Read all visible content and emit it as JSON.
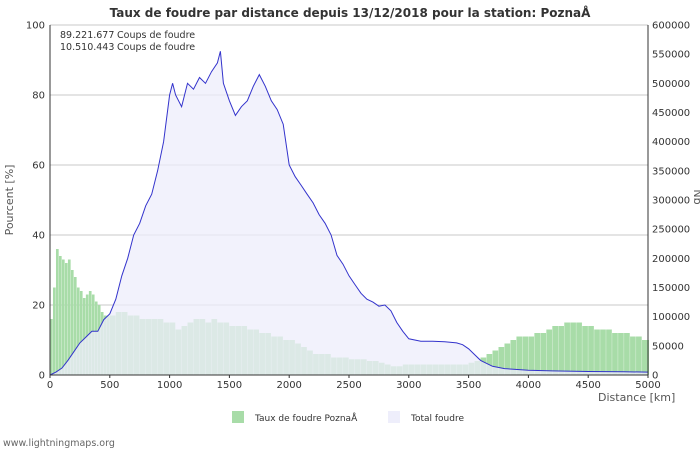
{
  "chart_data": {
    "type": "area",
    "title": "Taux de foudre par distance depuis 13/12/2018 pour la station: PoznaÅ",
    "xlabel": "Distance   [km]",
    "ylabel_left": "Pourcent   [%]",
    "ylabel_right": "Nb",
    "xlim": [
      0,
      5000
    ],
    "ylim_left": [
      0,
      100
    ],
    "ylim_right": [
      0,
      600000
    ],
    "x_ticks": [
      0,
      500,
      1000,
      1500,
      2000,
      2500,
      3000,
      3500,
      4000,
      4500,
      5000
    ],
    "y_left_ticks": [
      0,
      20,
      40,
      60,
      80,
      100
    ],
    "y_right_ticks": [
      0,
      50000,
      100000,
      150000,
      200000,
      250000,
      300000,
      350000,
      400000,
      450000,
      500000,
      550000,
      600000
    ],
    "stats": [
      {
        "value": "89.221.677",
        "label": "Coups de foudre"
      },
      {
        "value": "10.510.443",
        "label": "Coups de foudre"
      }
    ],
    "series": [
      {
        "name": "Taux de foudre PoznaÅ",
        "axis": "left",
        "color": "#a8dca8",
        "x": [
          0,
          25,
          50,
          75,
          100,
          125,
          150,
          175,
          200,
          225,
          250,
          275,
          300,
          325,
          350,
          375,
          400,
          425,
          450,
          475,
          500,
          550,
          600,
          650,
          700,
          750,
          800,
          850,
          900,
          950,
          1000,
          1050,
          1100,
          1150,
          1200,
          1250,
          1300,
          1350,
          1400,
          1450,
          1500,
          1550,
          1600,
          1650,
          1700,
          1750,
          1800,
          1850,
          1900,
          1950,
          2000,
          2050,
          2100,
          2150,
          2200,
          2250,
          2300,
          2350,
          2400,
          2450,
          2500,
          2550,
          2600,
          2650,
          2700,
          2750,
          2800,
          2850,
          2900,
          2950,
          3000,
          3050,
          3100,
          3150,
          3200,
          3250,
          3300,
          3350,
          3400,
          3450,
          3500,
          3550,
          3600,
          3650,
          3700,
          3750,
          3800,
          3850,
          3900,
          3950,
          4000,
          4050,
          4100,
          4150,
          4200,
          4250,
          4300,
          4350,
          4400,
          4450,
          4500,
          4550,
          4600,
          4650,
          4700,
          4750,
          4800,
          4850,
          4900,
          4950,
          5000
        ],
        "values": [
          16,
          25,
          36,
          34,
          33,
          32,
          33,
          30,
          28,
          25,
          24,
          22,
          23,
          24,
          23,
          21,
          20,
          18,
          17,
          17,
          17,
          18,
          18,
          17,
          17,
          16,
          16,
          16,
          16,
          15,
          15,
          13,
          14,
          15,
          16,
          16,
          15,
          16,
          15,
          15,
          14,
          14,
          14,
          13,
          13,
          12,
          12,
          11,
          11,
          10,
          10,
          9,
          8,
          7,
          6,
          6,
          6,
          5,
          5,
          5,
          4.5,
          4.5,
          4.5,
          4,
          4,
          3.5,
          3,
          2.5,
          2.5,
          3,
          3,
          3,
          3,
          3,
          3,
          3,
          3,
          3,
          3,
          3,
          3.5,
          4,
          5,
          6,
          7,
          8,
          9,
          10,
          11,
          11,
          11,
          12,
          12,
          13,
          14,
          14,
          15,
          15,
          15,
          14,
          14,
          13,
          13,
          13,
          12,
          12,
          12,
          11,
          11,
          10,
          10
        ]
      },
      {
        "name": "Total foudre",
        "axis": "right",
        "color": "#eeeefb",
        "line_color": "#3333cc",
        "x": [
          0,
          50,
          100,
          150,
          200,
          250,
          300,
          350,
          400,
          450,
          500,
          550,
          600,
          650,
          700,
          750,
          800,
          850,
          900,
          950,
          1000,
          1025,
          1050,
          1100,
          1150,
          1200,
          1250,
          1300,
          1350,
          1400,
          1425,
          1450,
          1500,
          1550,
          1600,
          1650,
          1700,
          1750,
          1800,
          1850,
          1900,
          1950,
          2000,
          2050,
          2100,
          2150,
          2200,
          2250,
          2300,
          2350,
          2400,
          2450,
          2500,
          2550,
          2600,
          2650,
          2700,
          2750,
          2800,
          2850,
          2900,
          2950,
          3000,
          3100,
          3200,
          3300,
          3400,
          3450,
          3500,
          3550,
          3600,
          3700,
          3800,
          4000,
          4200,
          4500,
          4800,
          5000
        ],
        "values": [
          0,
          5000,
          12000,
          25000,
          40000,
          55000,
          65000,
          75000,
          75000,
          95000,
          105000,
          130000,
          170000,
          200000,
          240000,
          260000,
          290000,
          310000,
          350000,
          400000,
          480000,
          500000,
          480000,
          460000,
          500000,
          490000,
          510000,
          500000,
          520000,
          535000,
          555000,
          500000,
          470000,
          445000,
          460000,
          470000,
          495000,
          515000,
          495000,
          470000,
          455000,
          430000,
          360000,
          340000,
          325000,
          310000,
          295000,
          275000,
          260000,
          240000,
          205000,
          190000,
          170000,
          155000,
          140000,
          130000,
          125000,
          118000,
          120000,
          110000,
          90000,
          75000,
          62000,
          58000,
          58000,
          57000,
          55000,
          52000,
          45000,
          35000,
          25000,
          15000,
          11000,
          8000,
          7000,
          6000,
          5500,
          5000
        ]
      }
    ],
    "legend": [
      {
        "label": "Taux de foudre PoznaÅ",
        "color": "#a8dca8"
      },
      {
        "label": "Total foudre",
        "color": "#eeeefb"
      }
    ],
    "legend_position": "bottom"
  },
  "footer": {
    "text": "www.lightningmaps.org"
  }
}
